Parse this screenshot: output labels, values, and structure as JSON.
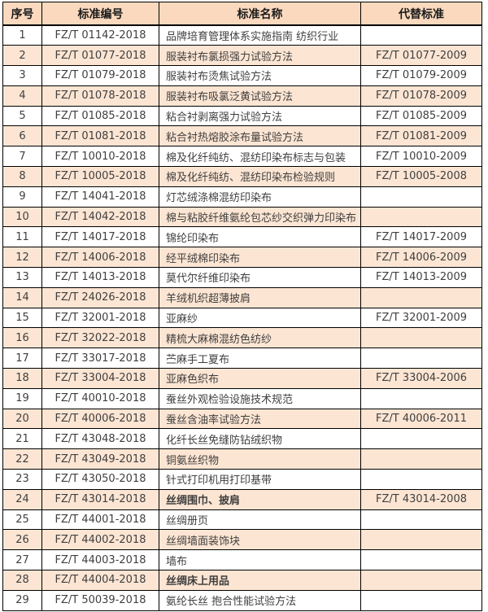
{
  "colors": {
    "header_bg": "#fad9be",
    "alt_row_bg": "#fce5d3",
    "border": "#000000",
    "text": "#3f3f3f"
  },
  "table": {
    "headers": [
      "序号",
      "标准编号",
      "标准名称",
      "代替标准"
    ],
    "rows": [
      {
        "no": "1",
        "code": "FZ/T 01142-2018",
        "name": "品牌培育管理体系实施指南  纺织行业",
        "replaces": "",
        "bold": false
      },
      {
        "no": "2",
        "code": "FZ/T 01077-2018",
        "name": "服装衬布氯损强力试验方法",
        "replaces": "FZ/T 01077-2009",
        "bold": false
      },
      {
        "no": "3",
        "code": "FZ/T 01079-2018",
        "name": "服装衬布烫焦试验方法",
        "replaces": "FZ/T 01079-2009",
        "bold": false
      },
      {
        "no": "4",
        "code": "FZ/T 01078-2018",
        "name": "服装衬布吸氯泛黄试验方法",
        "replaces": "FZ/T 01078-2009",
        "bold": false
      },
      {
        "no": "5",
        "code": "FZ/T 01085-2018",
        "name": "粘合衬剥离强力试验方法",
        "replaces": "FZ/T 01085-2009",
        "bold": false
      },
      {
        "no": "6",
        "code": "FZ/T 01081-2018",
        "name": "粘合衬热熔胶涂布量试验方法",
        "replaces": "FZ/T 01081-2009",
        "bold": false
      },
      {
        "no": "7",
        "code": "FZ/T 10010-2018",
        "name": "棉及化纤纯纺、混纺印染布标志与包装",
        "replaces": "FZ/T 10010-2009",
        "bold": false
      },
      {
        "no": "8",
        "code": "FZ/T 10005-2018",
        "name": "棉及化纤纯纺、混纺印染布检验规则",
        "replaces": "FZ/T 10005-2008",
        "bold": false
      },
      {
        "no": "9",
        "code": "FZ/T 14041-2018",
        "name": "灯芯绒涤棉混纺印染布",
        "replaces": "",
        "bold": false
      },
      {
        "no": "10",
        "code": "FZ/T 14042-2018",
        "name": "棉与粘胶纤维氨纶包芯纱交织弹力印染布",
        "replaces": "",
        "bold": false
      },
      {
        "no": "11",
        "code": "FZ/T 14017-2018",
        "name": "锦纶印染布",
        "replaces": "FZ/T 14017-2009",
        "bold": false
      },
      {
        "no": "12",
        "code": "FZ/T 14006-2018",
        "name": "经平绒棉印染布",
        "replaces": "FZ/T 14006-2009",
        "bold": false
      },
      {
        "no": "13",
        "code": "FZ/T 14013-2018",
        "name": "莫代尔纤维印染布",
        "replaces": "FZ/T 14013-2009",
        "bold": false
      },
      {
        "no": "14",
        "code": "FZ/T 24026-2018",
        "name": "羊绒机织超薄披肩",
        "replaces": "",
        "bold": false
      },
      {
        "no": "15",
        "code": "FZ/T 32001-2018",
        "name": "亚麻纱",
        "replaces": "FZ/T 32001-2009",
        "bold": false
      },
      {
        "no": "16",
        "code": "FZ/T 32022-2018",
        "name": "精梳大麻棉混纺色纺纱",
        "replaces": "",
        "bold": false
      },
      {
        "no": "17",
        "code": "FZ/T 33017-2018",
        "name": "苎麻手工夏布",
        "replaces": "",
        "bold": false
      },
      {
        "no": "18",
        "code": "FZ/T 33004-2018",
        "name": "亚麻色织布",
        "replaces": "FZ/T 33004-2006",
        "bold": false
      },
      {
        "no": "19",
        "code": "FZ/T 40010-2018",
        "name": "蚕丝外观检验设施技术规范",
        "replaces": "",
        "bold": false
      },
      {
        "no": "20",
        "code": "FZ/T 40006-2018",
        "name": "蚕丝含油率试验方法",
        "replaces": "FZ/T 40006-2011",
        "bold": false
      },
      {
        "no": "21",
        "code": "FZ/T 43048-2018",
        "name": "化纤长丝免缝防钻绒织物",
        "replaces": "",
        "bold": false
      },
      {
        "no": "22",
        "code": "FZ/T 43049-2018",
        "name": "铜氨丝织物",
        "replaces": "",
        "bold": false
      },
      {
        "no": "23",
        "code": "FZ/T 43050-2018",
        "name": "针式打印机用打印基带",
        "replaces": "",
        "bold": false
      },
      {
        "no": "24",
        "code": "FZ/T 43014-2018",
        "name": "丝绸围巾、披肩",
        "replaces": "FZ/T 43014-2008",
        "bold": true
      },
      {
        "no": "25",
        "code": "FZ/T 44001-2018",
        "name": "丝绸册页",
        "replaces": "",
        "bold": false
      },
      {
        "no": "26",
        "code": "FZ/T 44002-2018",
        "name": "丝绸墙面装饰块",
        "replaces": "",
        "bold": false
      },
      {
        "no": "27",
        "code": "FZ/T 44003-2018",
        "name": "墙布",
        "replaces": "",
        "bold": false
      },
      {
        "no": "28",
        "code": "FZ/T 44004-2018",
        "name": "丝绸床上用品",
        "replaces": "",
        "bold": true
      },
      {
        "no": "29",
        "code": "FZ/T 50039-2018",
        "name": "氨纶长丝 抱合性能试验方法",
        "replaces": "",
        "bold": false
      }
    ]
  }
}
